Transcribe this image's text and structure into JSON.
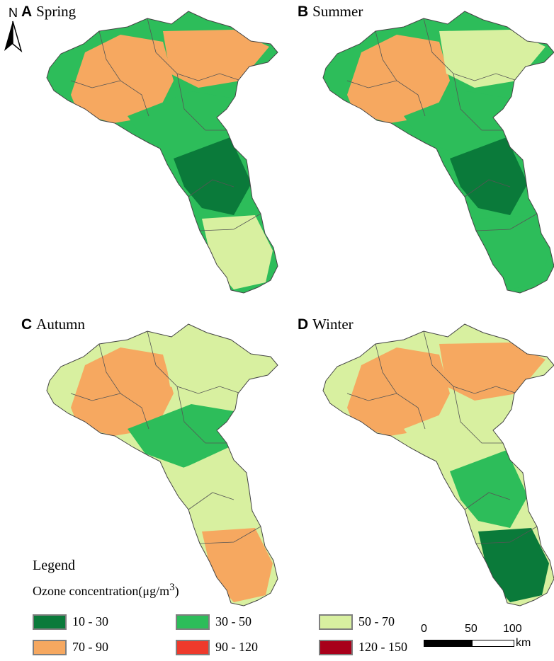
{
  "north_arrow": {
    "label": "N"
  },
  "panels": [
    {
      "letter": "A",
      "title": "Spring",
      "dominant": "c2",
      "zones": [
        "c4",
        "c4",
        "c2",
        "c1",
        "c3"
      ]
    },
    {
      "letter": "B",
      "title": "Summer",
      "dominant": "c2",
      "zones": [
        "c4",
        "c3",
        "c2",
        "c1",
        "c2"
      ]
    },
    {
      "letter": "C",
      "title": "Autumn",
      "dominant": "c3",
      "zones": [
        "c4",
        "c3",
        "c2",
        "c3",
        "c4"
      ]
    },
    {
      "letter": "D",
      "title": "Winter",
      "dominant": "c3",
      "zones": [
        "c4",
        "c4",
        "c3",
        "c2",
        "c1"
      ]
    }
  ],
  "legend": {
    "title": "Legend",
    "subtitle_prefix": "Ozone concentration(μg/m",
    "subtitle_sup": "3",
    "subtitle_suffix": ")",
    "classes": [
      {
        "key": "c1",
        "label": "10 - 30",
        "color": "#0a7a3a"
      },
      {
        "key": "c2",
        "label": "30 - 50",
        "color": "#2dbd5a"
      },
      {
        "key": "c3",
        "label": "50 - 70",
        "color": "#d8f0a0"
      },
      {
        "key": "c4",
        "label": "70 - 90",
        "color": "#f6a860"
      },
      {
        "key": "c5",
        "label": "90 - 120",
        "color": "#ee3a2c"
      },
      {
        "key": "c6",
        "label": "120 - 150",
        "color": "#a8001a"
      }
    ]
  },
  "scalebar": {
    "ticks": [
      "0",
      "50",
      "100"
    ],
    "unit": "km"
  }
}
